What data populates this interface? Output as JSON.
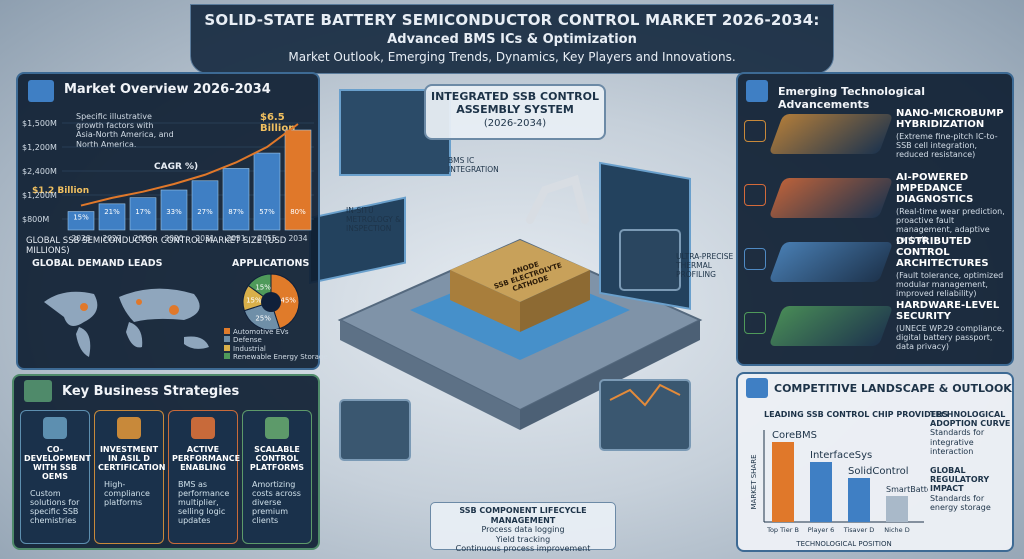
{
  "header": {
    "title": "SOLID-STATE BATTERY SEMICONDUCTOR CONTROL MARKET 2026-2034:",
    "subtitle": "Advanced BMS ICs & Optimization",
    "tagline": "Market Outlook, Emerging Trends, Dynamics, Key Players and Innovations."
  },
  "market_overview": {
    "title": "Market Overview 2026-2034",
    "note": "Specific illustrative growth factors with Asia-North America, and North America.",
    "cagr": "CAGR %)",
    "start_label": "$1.2 Billion",
    "end_label": "$6.5 Billion",
    "y_labels": [
      "$1,500M",
      "$1,200M",
      "$2,400M",
      "$1,200M",
      "$800M"
    ],
    "bars": {
      "categories": [
        "2026",
        "2027",
        "2026",
        "2020",
        "2031",
        "2051",
        "2055",
        "2034"
      ],
      "values": [
        1200,
        1700,
        2100,
        2600,
        3200,
        4000,
        5000,
        6500
      ],
      "bar_texts": [
        "15%",
        "21%",
        "17%",
        "33%",
        "27%",
        "87%",
        "57%",
        "80%"
      ]
    },
    "caption": "GLOBAL SSB SEMICONDUCTOR CONTROL MARKET SIZE (USD MILLIONS)"
  },
  "global_demand": {
    "title": "GLOBAL DEMAND LEADS"
  },
  "applications": {
    "title": "APPLICATIONS",
    "segments": [
      {
        "name": "Automotive EVs",
        "value": 45,
        "label": "45%",
        "color": "#e07b2a"
      },
      {
        "name": "Defense",
        "value": 25,
        "label": "25%",
        "color": "#6f8fa8"
      },
      {
        "name": "Industrial",
        "value": 15,
        "label": "15%",
        "color": "#d9b04a"
      },
      {
        "name": "Renewable Energy Storage",
        "value": 15,
        "label": "15%",
        "color": "#4f9a5a"
      }
    ]
  },
  "strategies": {
    "title": "Key Business Strategies",
    "items": [
      {
        "title": "CO-DEVELOPMENT WITH SSB OEMS",
        "text": "Custom solutions for specific SSB chemistries"
      },
      {
        "title": "INVESTMENT IN ASIL D CERTIFICATION",
        "text": "High-compliance platforms"
      },
      {
        "title": "ACTIVE PERFORMANCE ENABLING",
        "text": "BMS as performance multiplier, selling logic updates"
      },
      {
        "title": "SCALABLE CONTROL PLATFORMS",
        "text": "Amortizing costs across diverse premium clients"
      }
    ]
  },
  "center": {
    "title": "INTEGRATED SSB CONTROL ASSEMBLY SYSTEM",
    "years": "(2026-2034)",
    "labels": [
      "BMS IC INTEGRATION",
      "IN-SITU METROLOGY & INSPECTION",
      "ULTRA-PRECISE THERMAL PROFILING"
    ],
    "layers": [
      "ANODE",
      "SSB ELECTROLYTE",
      "CATHODE"
    ],
    "lifecycle": {
      "title": "SSB COMPONENT LIFECYCLE MANAGEMENT",
      "items": [
        "Process data logging",
        "Yield tracking",
        "Continuous process improvement"
      ]
    }
  },
  "emerging": {
    "title": "Emerging Technological Advancements",
    "items": [
      {
        "title": "NANO-MICROBUMP HYBRIDIZATION",
        "text": "(Extreme fine-pitch IC-to-SSB cell integration, reduced resistance)"
      },
      {
        "title": "AI-POWERED IMPEDANCE DIAGNOSTICS",
        "text": "(Real-time wear prediction, proactive fault management, adaptive control)"
      },
      {
        "title": "DISTRIBUTED CONTROL ARCHITECTURES",
        "text": "(Fault tolerance, optimized modular management, improved reliability)"
      },
      {
        "title": "HARDWARE-LEVEL SECURITY",
        "text": "(UNECE WP.29 compliance, digital battery passport, data privacy)"
      }
    ]
  },
  "competitive": {
    "title": "COMPETITIVE LANDSCAPE & OUTLOOK",
    "chart": {
      "title": "LEADING SSB CONTROL CHIP PROVIDERS",
      "y_label": "MARKET SHARE",
      "x_label": "TECHNOLOGICAL POSITION",
      "categories": [
        "Top Tier B",
        "Player 6",
        "Tisaver D",
        "Niche D"
      ],
      "names": [
        "CoreBMS",
        "InterfaceSys",
        "SolidControl",
        "SmartBatteryChip"
      ],
      "values": [
        40,
        30,
        22,
        13
      ],
      "colors": [
        "#e0782a",
        "#3f7fc4",
        "#3f7fc4",
        "#a9b9c9"
      ]
    },
    "side": [
      {
        "title": "TECHNOLOGICAL ADOPTION CURVE",
        "text": "Standards for integrative interaction"
      },
      {
        "title": "GLOBAL REGULATORY IMPACT",
        "text": "Standards for energy storage"
      }
    ]
  }
}
